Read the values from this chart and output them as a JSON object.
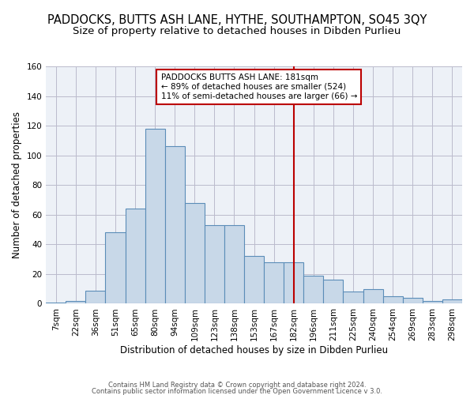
{
  "title": "PADDOCKS, BUTTS ASH LANE, HYTHE, SOUTHAMPTON, SO45 3QY",
  "subtitle": "Size of property relative to detached houses in Dibden Purlieu",
  "xlabel": "Distribution of detached houses by size in Dibden Purlieu",
  "ylabel": "Number of detached properties",
  "categories": [
    "7sqm",
    "22sqm",
    "36sqm",
    "51sqm",
    "65sqm",
    "80sqm",
    "94sqm",
    "109sqm",
    "123sqm",
    "138sqm",
    "153sqm",
    "167sqm",
    "182sqm",
    "196sqm",
    "211sqm",
    "225sqm",
    "240sqm",
    "254sqm",
    "269sqm",
    "283sqm",
    "298sqm"
  ],
  "bar_heights": [
    1,
    2,
    9,
    48,
    64,
    118,
    106,
    68,
    53,
    53,
    32,
    28,
    28,
    19,
    16,
    8,
    10,
    5,
    4,
    2,
    3
  ],
  "bar_color": "#c8d8e8",
  "bar_edgecolor": "#5b8db8",
  "grid_color": "#bbbbcc",
  "bg_color": "#edf1f7",
  "vline_x": 12,
  "vline_color": "#bb0000",
  "annotation_title": "PADDOCKS BUTTS ASH LANE: 181sqm",
  "annotation_line1": "← 89% of detached houses are smaller (524)",
  "annotation_line2": "11% of semi-detached houses are larger (66) →",
  "annotation_box_edgecolor": "#bb0000",
  "footer1": "Contains HM Land Registry data © Crown copyright and database right 2024.",
  "footer2": "Contains public sector information licensed under the Open Government Licence v 3.0.",
  "ylim": [
    0,
    160
  ],
  "yticks": [
    0,
    20,
    40,
    60,
    80,
    100,
    120,
    140,
    160
  ],
  "title_fontsize": 10.5,
  "subtitle_fontsize": 9.5,
  "xlabel_fontsize": 8.5,
  "ylabel_fontsize": 8.5,
  "tick_fontsize": 7.5,
  "annot_fontsize": 7.5,
  "footer_fontsize": 6.0
}
